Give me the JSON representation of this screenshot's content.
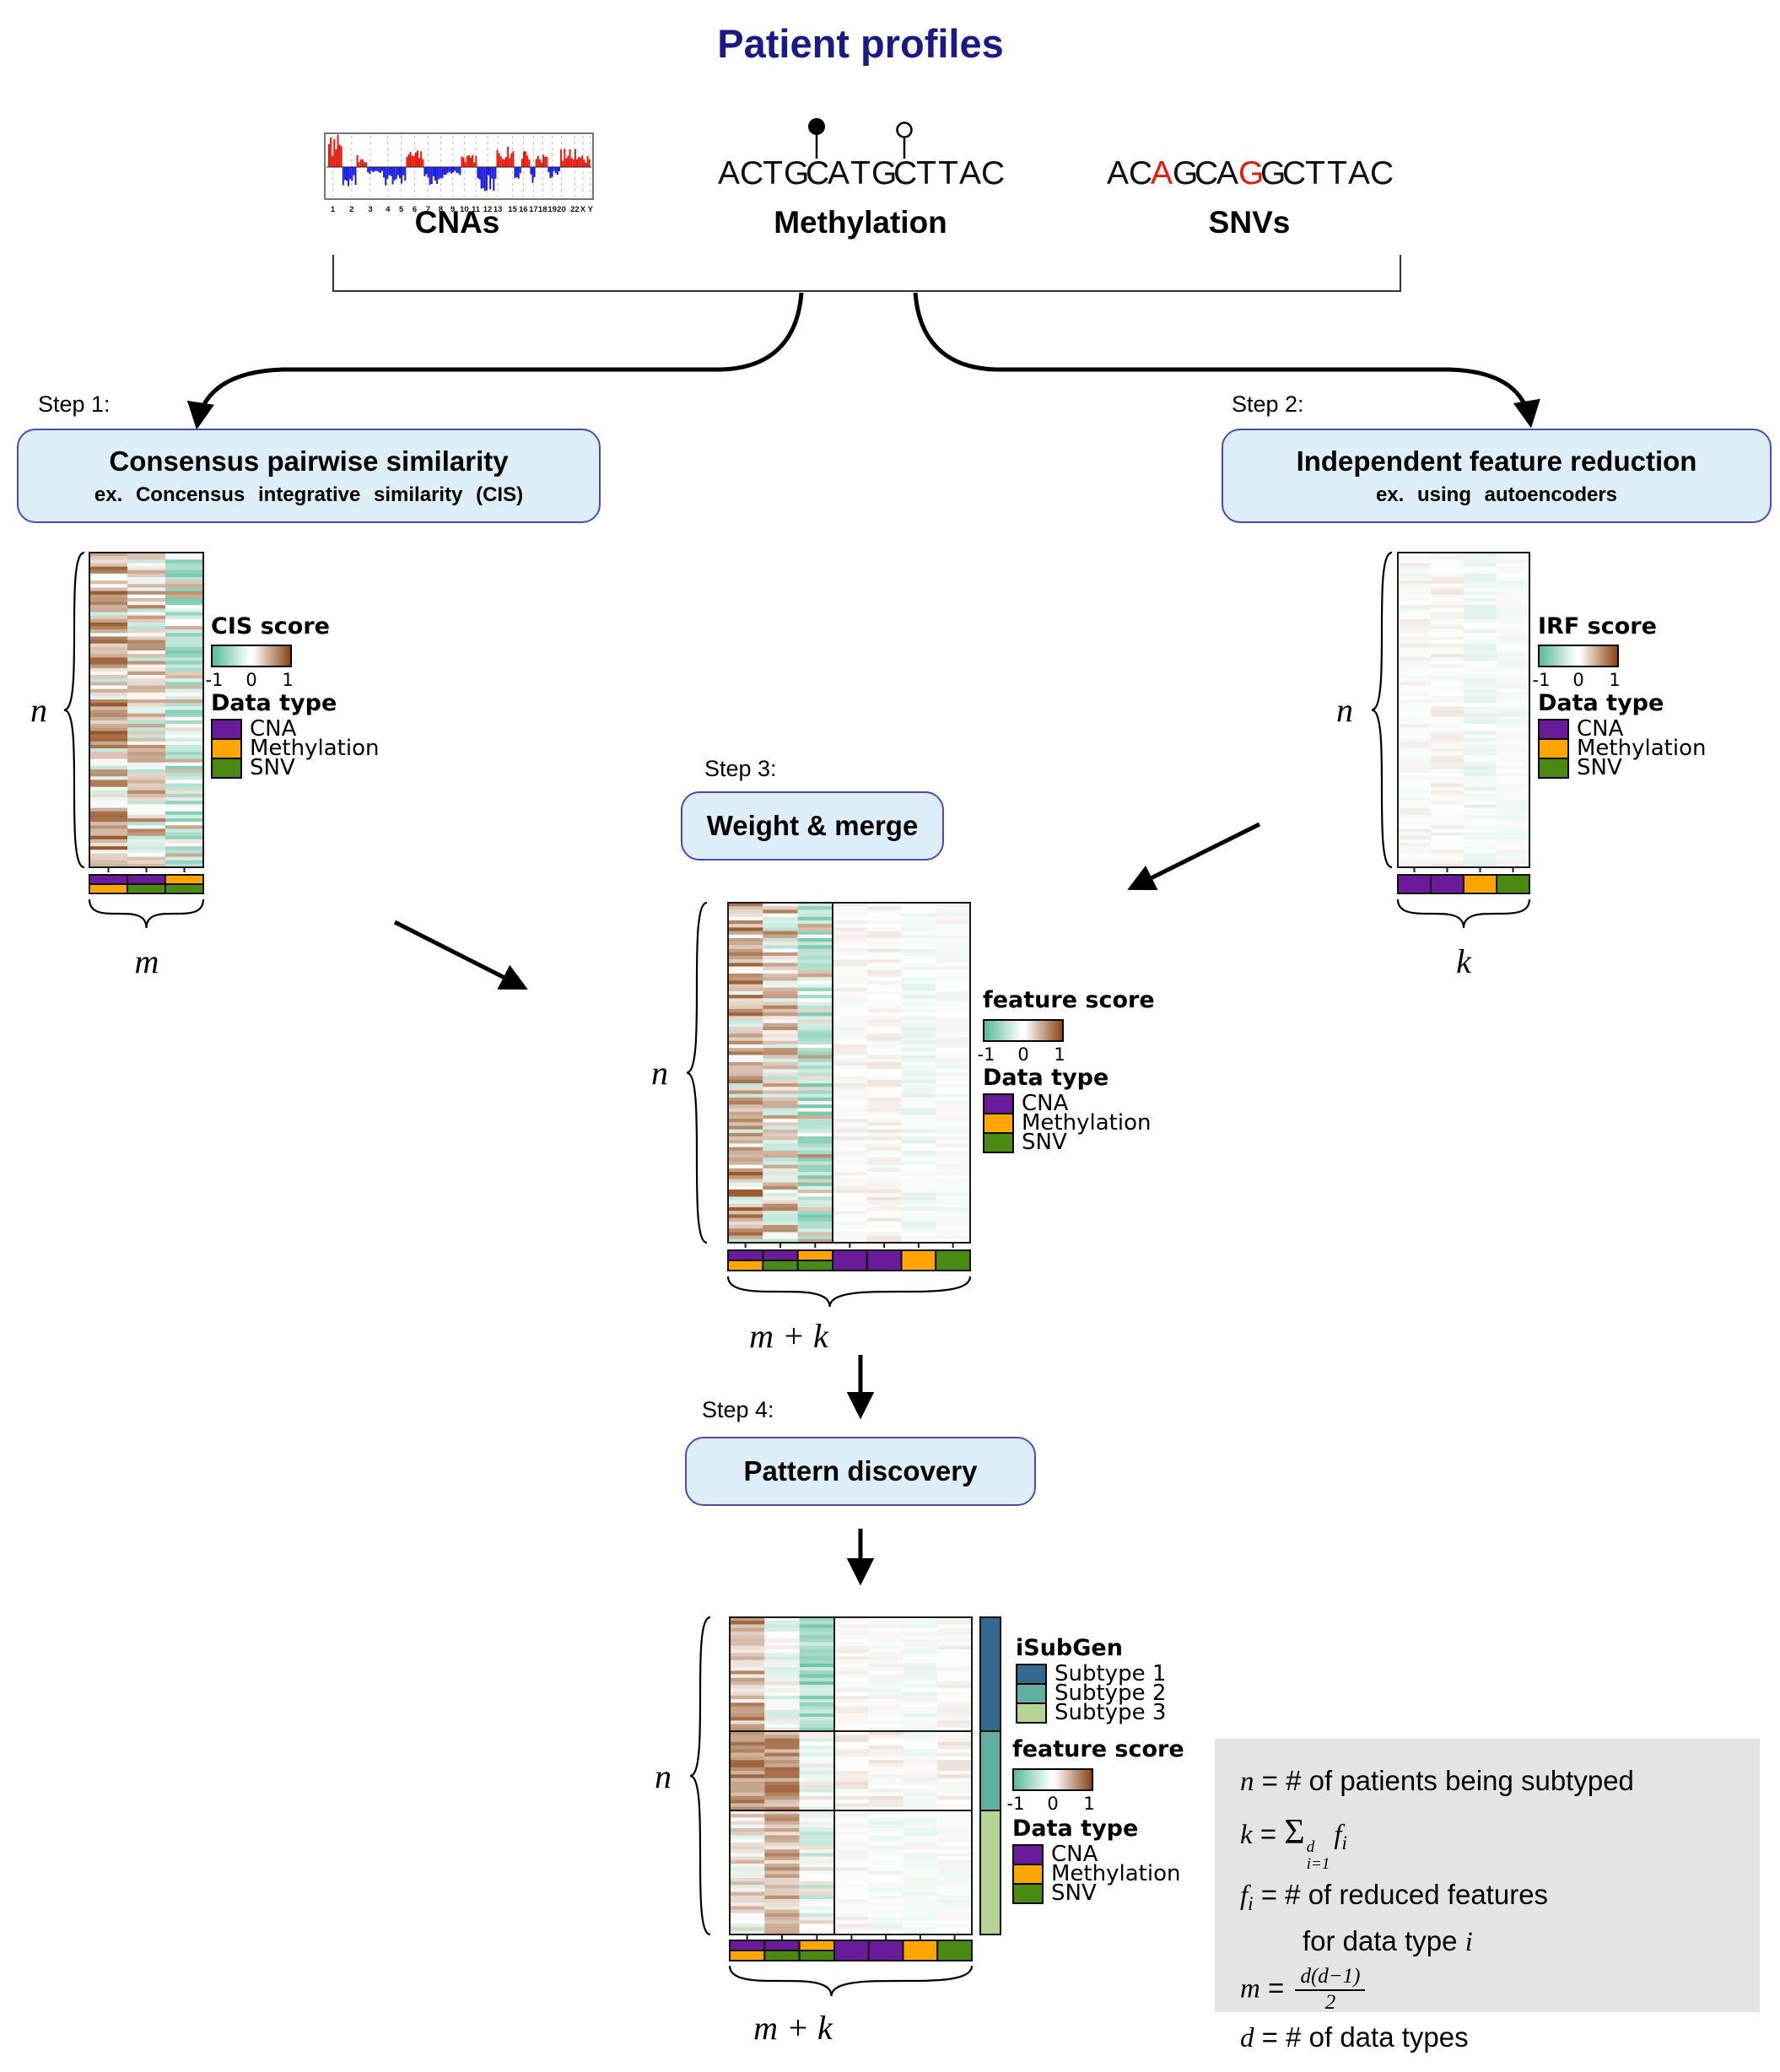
{
  "title": "Patient profiles",
  "profiles": {
    "cna": {
      "label": "CNAs",
      "chromosomes": [
        "1",
        "2",
        "3",
        "4",
        "5",
        "6",
        "7",
        "8",
        "9",
        "10",
        "11",
        "12",
        "13",
        "15",
        "16",
        "17",
        "18",
        "19",
        "20",
        "22",
        "X",
        "Y"
      ]
    },
    "methylation": {
      "label": "Methylation",
      "sequence": "ACTGCATGCTTAC",
      "lollipops": [
        {
          "index": 4,
          "style": "filled"
        },
        {
          "index": 8,
          "style": "open"
        }
      ]
    },
    "snv": {
      "label": "SNVs",
      "sequence": "ACAGCAGGCTTAC",
      "variant_indices": [
        2,
        6
      ]
    }
  },
  "steps": {
    "step1": {
      "label": "Step 1:",
      "title": "Consensus pairwise similarity",
      "subtitle": "ex.  Concensus  integrative  similarity  (CIS)"
    },
    "step2": {
      "label": "Step 2:",
      "title": "Independent feature reduction",
      "subtitle": "ex.  using  autoencoders"
    },
    "step3": {
      "label": "Step 3:",
      "title": "Weight & merge"
    },
    "step4": {
      "label": "Step 4:",
      "title": "Pattern discovery"
    }
  },
  "legends": {
    "scale_ticks": [
      "-1",
      "0",
      "1"
    ],
    "cis": {
      "title": "CIS score"
    },
    "irf": {
      "title": "IRF score"
    },
    "feature_mid": {
      "title": "feature score"
    },
    "feature_bottom": {
      "title": "feature score"
    },
    "datatype": {
      "title": "Data type",
      "items": [
        {
          "label": "CNA",
          "color": "#6a1b9a"
        },
        {
          "label": "Methylation",
          "color": "#ffa500"
        },
        {
          "label": "SNV",
          "color": "#4a8a12"
        }
      ]
    },
    "isubgen": {
      "title": "iSubGen",
      "items": [
        {
          "label": "Subtype 1",
          "color": "#33688f"
        },
        {
          "label": "Subtype 2",
          "color": "#60afa0"
        },
        {
          "label": "Subtype 3",
          "color": "#b6d294"
        }
      ]
    }
  },
  "math": {
    "n": "n",
    "m": "m",
    "k": "k",
    "mk": "m + k"
  },
  "matrices": {
    "pairwise_annotation_columns": [
      [
        "cna",
        "methylation"
      ],
      [
        "cna",
        "snv"
      ],
      [
        "methylation",
        "snv"
      ]
    ],
    "reduced_annotation_columns": [
      "cna",
      "cna",
      "methylation",
      "snv"
    ]
  },
  "defs": {
    "n_sym": "n",
    "n_rhs": " = # of patients being subtyped",
    "k_sym": "k",
    "eq": " = ",
    "sigma": "Σ",
    "sum_sup": "d",
    "sum_sub": "i=1",
    "f_sym": "f",
    "i_sym": "i",
    "f_rhs": " = # of reduced features",
    "f_rhs2": "for data type ",
    "m_sym": "m",
    "m_num": "d(d−1)",
    "m_den": "2",
    "d_sym": "d",
    "d_rhs": " = # of data types"
  },
  "colors": {
    "navy": "#1a1a87",
    "box_fill": "#ddeef8",
    "box_border": "#4a4ab8",
    "gray_box": "#e4e4e4",
    "seq_red": "#e81a0c",
    "cna_gain_red": "#e8180c",
    "cna_loss_blue": "#1a1ae0",
    "scale_neg_green": "#56ba98",
    "scale_pos_brown": "#8b4513",
    "cna": "#6a1b9a",
    "methylation": "#ffa500",
    "snv": "#4a8a12",
    "subtype1": "#33688f",
    "subtype2": "#60afa0",
    "subtype3": "#b6d294"
  }
}
